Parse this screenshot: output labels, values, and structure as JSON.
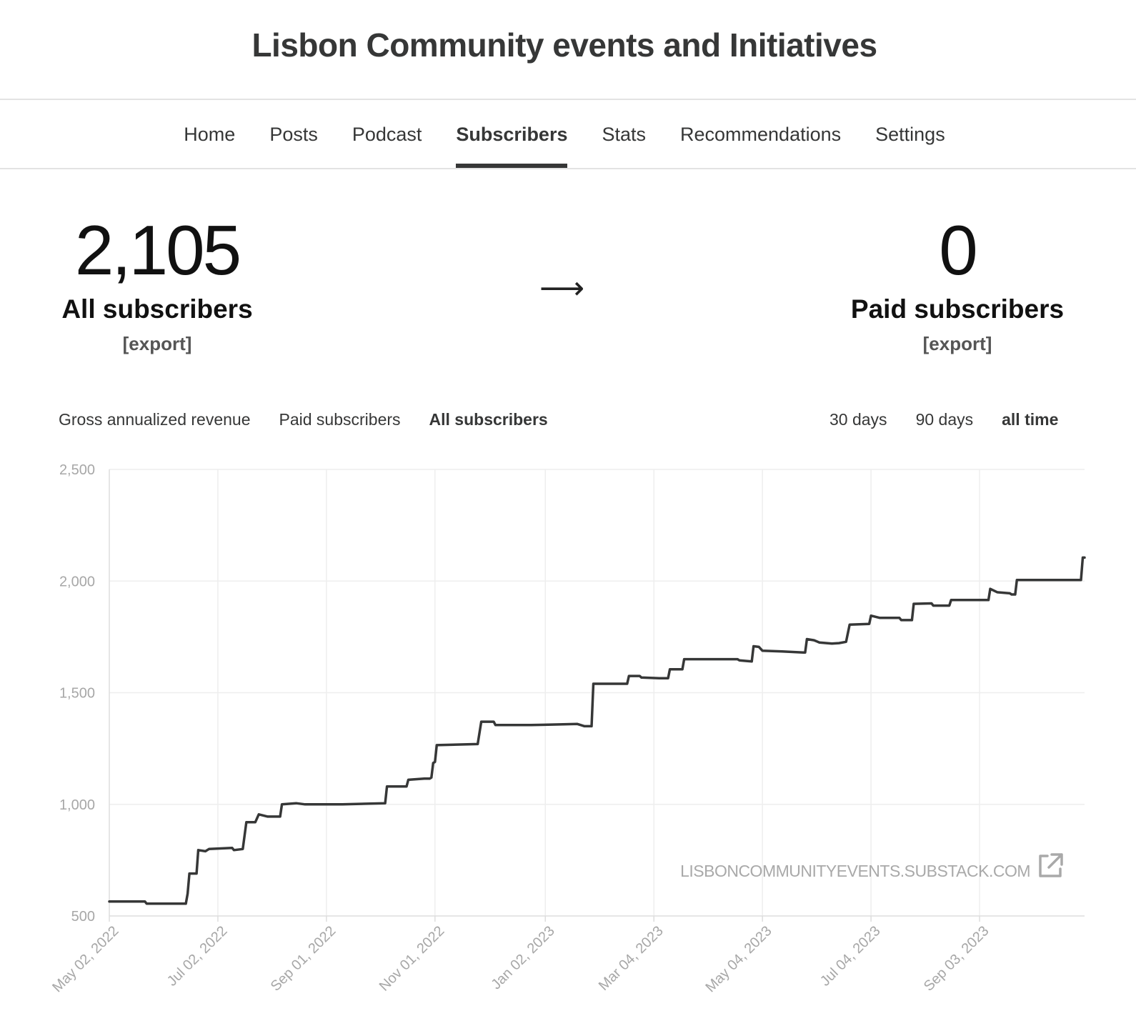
{
  "site": {
    "title": "Lisbon Community events and Initiatives"
  },
  "nav": {
    "items": [
      {
        "label": "Home"
      },
      {
        "label": "Posts"
      },
      {
        "label": "Podcast"
      },
      {
        "label": "Subscribers",
        "active": true
      },
      {
        "label": "Stats"
      },
      {
        "label": "Recommendations"
      },
      {
        "label": "Settings"
      }
    ]
  },
  "stats": {
    "all": {
      "value": "2,105",
      "label": "All subscribers",
      "export": "[export]"
    },
    "arrow": "⟶",
    "paid": {
      "value": "0",
      "label": "Paid subscribers",
      "export": "[export]"
    }
  },
  "metric_tabs": [
    {
      "label": "Gross annualized revenue"
    },
    {
      "label": "Paid subscribers"
    },
    {
      "label": "All subscribers",
      "active": true
    }
  ],
  "range_tabs": [
    {
      "label": "30 days"
    },
    {
      "label": "90 days"
    },
    {
      "label": "all time",
      "active": true
    }
  ],
  "chart_data": {
    "type": "line",
    "ylim": [
      500,
      2500
    ],
    "yticks": [
      500,
      1000,
      1500,
      2000,
      2500
    ],
    "ytick_labels": [
      "500",
      "1,000",
      "1,500",
      "2,000",
      "2,500"
    ],
    "xlim": [
      "2022-05-02",
      "2023-11-01"
    ],
    "xticks": [
      "2022-05-02",
      "2022-07-02",
      "2022-09-01",
      "2022-11-01",
      "2023-01-02",
      "2023-03-04",
      "2023-05-04",
      "2023-07-04",
      "2023-09-03"
    ],
    "xtick_labels": [
      "May 02, 2022",
      "Jul 02, 2022",
      "Sep 01, 2022",
      "Nov 01, 2022",
      "Jan 02, 2023",
      "Mar 04, 2023",
      "May 04, 2023",
      "Jul 04, 2023",
      "Sep 03, 2023"
    ],
    "grid": true,
    "line_color": "#363737",
    "watermark": "LISBONCOMMUNITYEVENTS.SUBSTACK.COM",
    "series": [
      {
        "points": [
          [
            "2022-05-02",
            565
          ],
          [
            "2022-05-22",
            565
          ],
          [
            "2022-05-23",
            555
          ],
          [
            "2022-06-14",
            555
          ],
          [
            "2022-06-15",
            600
          ],
          [
            "2022-06-16",
            690
          ],
          [
            "2022-06-20",
            690
          ],
          [
            "2022-06-21",
            795
          ],
          [
            "2022-06-25",
            790
          ],
          [
            "2022-06-27",
            800
          ],
          [
            "2022-07-10",
            805
          ],
          [
            "2022-07-11",
            795
          ],
          [
            "2022-07-16",
            800
          ],
          [
            "2022-07-18",
            920
          ],
          [
            "2022-07-23",
            920
          ],
          [
            "2022-07-25",
            955
          ],
          [
            "2022-07-30",
            945
          ],
          [
            "2022-08-06",
            945
          ],
          [
            "2022-08-07",
            1000
          ],
          [
            "2022-08-15",
            1005
          ],
          [
            "2022-08-20",
            1000
          ],
          [
            "2022-09-10",
            1000
          ],
          [
            "2022-10-04",
            1005
          ],
          [
            "2022-10-05",
            1080
          ],
          [
            "2022-10-16",
            1080
          ],
          [
            "2022-10-17",
            1110
          ],
          [
            "2022-10-26",
            1115
          ],
          [
            "2022-10-29",
            1115
          ],
          [
            "2022-10-30",
            1120
          ],
          [
            "2022-10-31",
            1185
          ],
          [
            "2022-11-01",
            1190
          ],
          [
            "2022-11-02",
            1265
          ],
          [
            "2022-11-25",
            1270
          ],
          [
            "2022-11-27",
            1370
          ],
          [
            "2022-12-04",
            1370
          ],
          [
            "2022-12-05",
            1355
          ],
          [
            "2022-12-25",
            1355
          ],
          [
            "2023-01-10",
            1358
          ],
          [
            "2023-01-20",
            1360
          ],
          [
            "2023-01-24",
            1350
          ],
          [
            "2023-01-28",
            1350
          ],
          [
            "2023-01-29",
            1540
          ],
          [
            "2023-02-17",
            1540
          ],
          [
            "2023-02-18",
            1575
          ],
          [
            "2023-02-24",
            1575
          ],
          [
            "2023-02-25",
            1568
          ],
          [
            "2023-03-07",
            1565
          ],
          [
            "2023-03-12",
            1565
          ],
          [
            "2023-03-13",
            1605
          ],
          [
            "2023-03-20",
            1605
          ],
          [
            "2023-03-21",
            1650
          ],
          [
            "2023-04-01",
            1650
          ],
          [
            "2023-04-20",
            1650
          ],
          [
            "2023-04-21",
            1645
          ],
          [
            "2023-04-28",
            1640
          ],
          [
            "2023-04-29",
            1708
          ],
          [
            "2023-05-02",
            1705
          ],
          [
            "2023-05-04",
            1688
          ],
          [
            "2023-05-15",
            1685
          ],
          [
            "2023-05-27",
            1680
          ],
          [
            "2023-05-28",
            1680
          ],
          [
            "2023-05-29",
            1740
          ],
          [
            "2023-06-02",
            1735
          ],
          [
            "2023-06-05",
            1725
          ],
          [
            "2023-06-12",
            1720
          ],
          [
            "2023-06-16",
            1722
          ],
          [
            "2023-06-20",
            1728
          ],
          [
            "2023-06-22",
            1805
          ],
          [
            "2023-07-03",
            1808
          ],
          [
            "2023-07-04",
            1845
          ],
          [
            "2023-07-09",
            1835
          ],
          [
            "2023-07-20",
            1835
          ],
          [
            "2023-07-21",
            1825
          ],
          [
            "2023-07-27",
            1825
          ],
          [
            "2023-07-28",
            1898
          ],
          [
            "2023-08-07",
            1900
          ],
          [
            "2023-08-08",
            1890
          ],
          [
            "2023-08-17",
            1890
          ],
          [
            "2023-08-18",
            1915
          ],
          [
            "2023-09-08",
            1915
          ],
          [
            "2023-09-09",
            1965
          ],
          [
            "2023-09-13",
            1950
          ],
          [
            "2023-09-20",
            1945
          ],
          [
            "2023-09-21",
            1940
          ],
          [
            "2023-09-23",
            1940
          ],
          [
            "2023-09-24",
            2005
          ],
          [
            "2023-10-01",
            2005
          ],
          [
            "2023-10-20",
            2005
          ],
          [
            "2023-10-30",
            2005
          ],
          [
            "2023-10-31",
            2105
          ],
          [
            "2023-11-01",
            2105
          ]
        ]
      }
    ]
  }
}
